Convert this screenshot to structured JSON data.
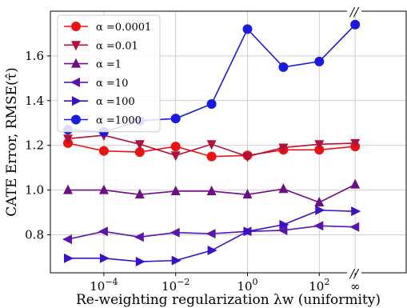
{
  "chart_data": {
    "type": "line",
    "x_tick_labels": [
      "10",
      "10",
      "10",
      "10",
      "∞"
    ],
    "x_tick_exponents": [
      "−4",
      "−2",
      "0",
      "2",
      ""
    ],
    "xlabel": "Re-weighting regularization λw (uniformity)",
    "ylabel": "CATE Error, RMSE(τ̂)",
    "ylim": [
      0.63,
      1.8
    ],
    "yticks": [
      0.8,
      1.0,
      1.2,
      1.4,
      1.6
    ],
    "ytick_labels": [
      "0.8",
      "1.0",
      "1.2",
      "1.4",
      "1.6"
    ],
    "x": [
      "0.00001",
      "0.0001",
      "0.001",
      "0.01",
      "0.1",
      "1",
      "10",
      "100",
      "∞"
    ],
    "grid": true,
    "legend_position": "upper left",
    "axis_break_marker": "//",
    "series": [
      {
        "name": "α = 0.0001",
        "legend_label": "α =0.0001",
        "color": "#ee1111",
        "marker": "circle",
        "values": [
          1.21,
          1.175,
          1.17,
          1.195,
          1.15,
          1.155,
          1.18,
          1.18,
          1.195
        ]
      },
      {
        "name": "α = 0.01",
        "legend_label": "α =0.01",
        "color": "#b0103a",
        "marker": "triangle-down",
        "values": [
          1.23,
          1.245,
          1.205,
          1.155,
          1.205,
          1.15,
          1.19,
          1.205,
          1.21
        ]
      },
      {
        "name": "α = 1",
        "legend_label": "α =1",
        "color": "#6e0e84",
        "marker": "triangle-up",
        "values": [
          1.0,
          1.0,
          0.98,
          0.995,
          0.995,
          0.98,
          1.005,
          0.945,
          1.025
        ]
      },
      {
        "name": "α = 10",
        "legend_label": "α =10",
        "color": "#5a14b0",
        "marker": "triangle-left",
        "values": [
          0.78,
          0.815,
          0.79,
          0.81,
          0.805,
          0.815,
          0.82,
          0.84,
          0.835
        ]
      },
      {
        "name": "α = 100",
        "legend_label": "α =100",
        "color": "#3a10c8",
        "marker": "triangle-right",
        "values": [
          0.695,
          0.695,
          0.68,
          0.685,
          0.73,
          0.815,
          0.845,
          0.91,
          0.905
        ]
      },
      {
        "name": "α = 1000",
        "legend_label": "α =1000",
        "color": "#1a1ae0",
        "marker": "circle",
        "values": [
          1.27,
          1.26,
          1.31,
          1.32,
          1.385,
          1.72,
          1.55,
          1.575,
          1.74
        ]
      }
    ]
  }
}
